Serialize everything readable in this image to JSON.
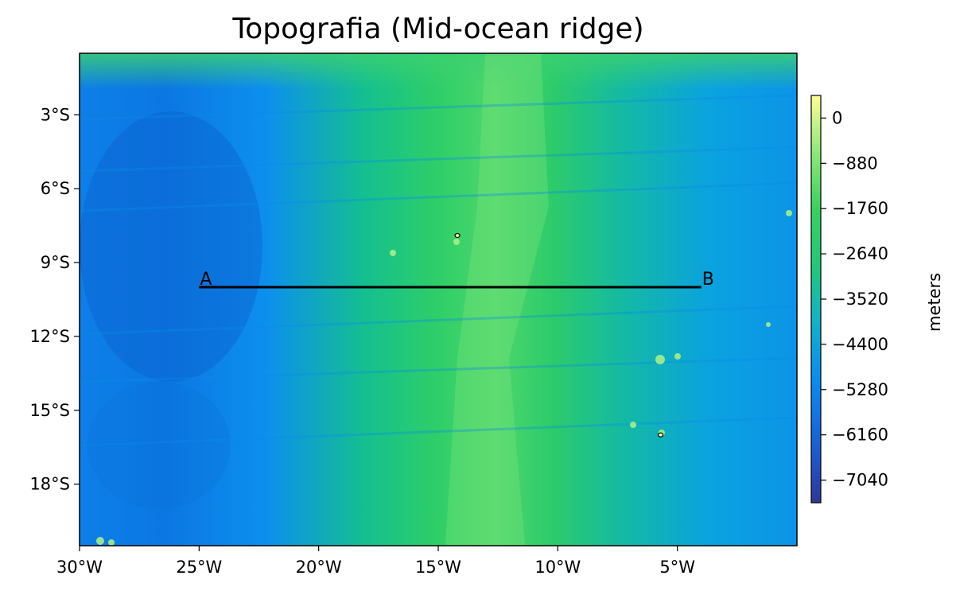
{
  "title": "Topografia (Mid-ocean ridge)",
  "map": {
    "type": "topography-heatmap",
    "colormap": [
      "#313695",
      "#1a5fd6",
      "#0a8cf0",
      "#12b3c6",
      "#22c87a",
      "#38d060",
      "#8ee878",
      "#fdfd96"
    ],
    "lon_range": [
      -30,
      0
    ],
    "lat_range": [
      -20.5,
      -0.5
    ],
    "x_ticks": [
      "30°W",
      "25°W",
      "20°W",
      "15°W",
      "10°W",
      "5°W"
    ],
    "x_tick_values": [
      -30,
      -25,
      -20,
      -15,
      -10,
      -5
    ],
    "y_ticks": [
      "3°S",
      "6°S",
      "9°S",
      "12°S",
      "15°S",
      "18°S"
    ],
    "y_tick_values": [
      -3,
      -6,
      -9,
      -12,
      -15,
      -18
    ],
    "profile_line": {
      "start": {
        "label": "A",
        "lon": -25,
        "lat": -10
      },
      "end": {
        "label": "B",
        "lon": -4,
        "lat": -10
      }
    },
    "contours": [
      {
        "lon": -14.2,
        "lat": -7.9
      },
      {
        "lon": -5.7,
        "lat": -16.0
      }
    ]
  },
  "colorbar": {
    "label": "meters",
    "range": [
      -7480,
      440
    ],
    "ticks": [
      "0",
      "−880",
      "−1760",
      "−2640",
      "−3520",
      "−4400",
      "−5280",
      "−6160",
      "−7040"
    ],
    "tick_values": [
      0,
      -880,
      -1760,
      -2640,
      -3520,
      -4400,
      -5280,
      -6160,
      -7040
    ]
  }
}
